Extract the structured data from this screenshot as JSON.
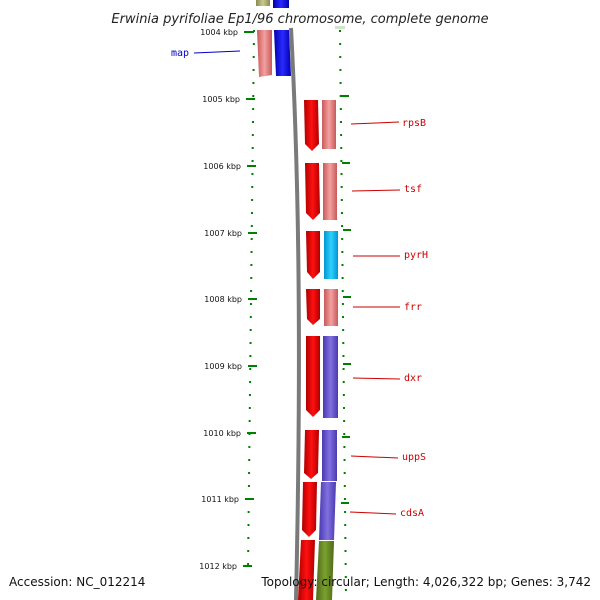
{
  "title": "Erwinia pyrifoliae Ep1/96 chromosome, complete genome",
  "footer": {
    "accession": "Accession: NC_012214",
    "summary": "Topology: circular; Length: 4,026,322 bp; Genes: 3,742"
  },
  "kbp_labels": [
    "1004 kbp",
    "1005 kbp",
    "1006 kbp",
    "1007 kbp",
    "1008 kbp",
    "1009 kbp",
    "1010 kbp",
    "1011 kbp",
    "1012 kbp"
  ],
  "map_label": "map",
  "gene_labels": [
    "rpsB",
    "tsf",
    "pyrH",
    "frr",
    "dxr",
    "uppS",
    "cdsA"
  ],
  "colors": {
    "cds_red": "#ff0000",
    "pink": "#ee8080",
    "blue": "#0000ff",
    "cyan": "#00bfff",
    "purple": "#6655cc",
    "olive": "#6b8e23",
    "tick_green": "#008000",
    "backbone_gray": "#808080",
    "label_red": "#cc0000",
    "label_blue": "#0000cc"
  }
}
